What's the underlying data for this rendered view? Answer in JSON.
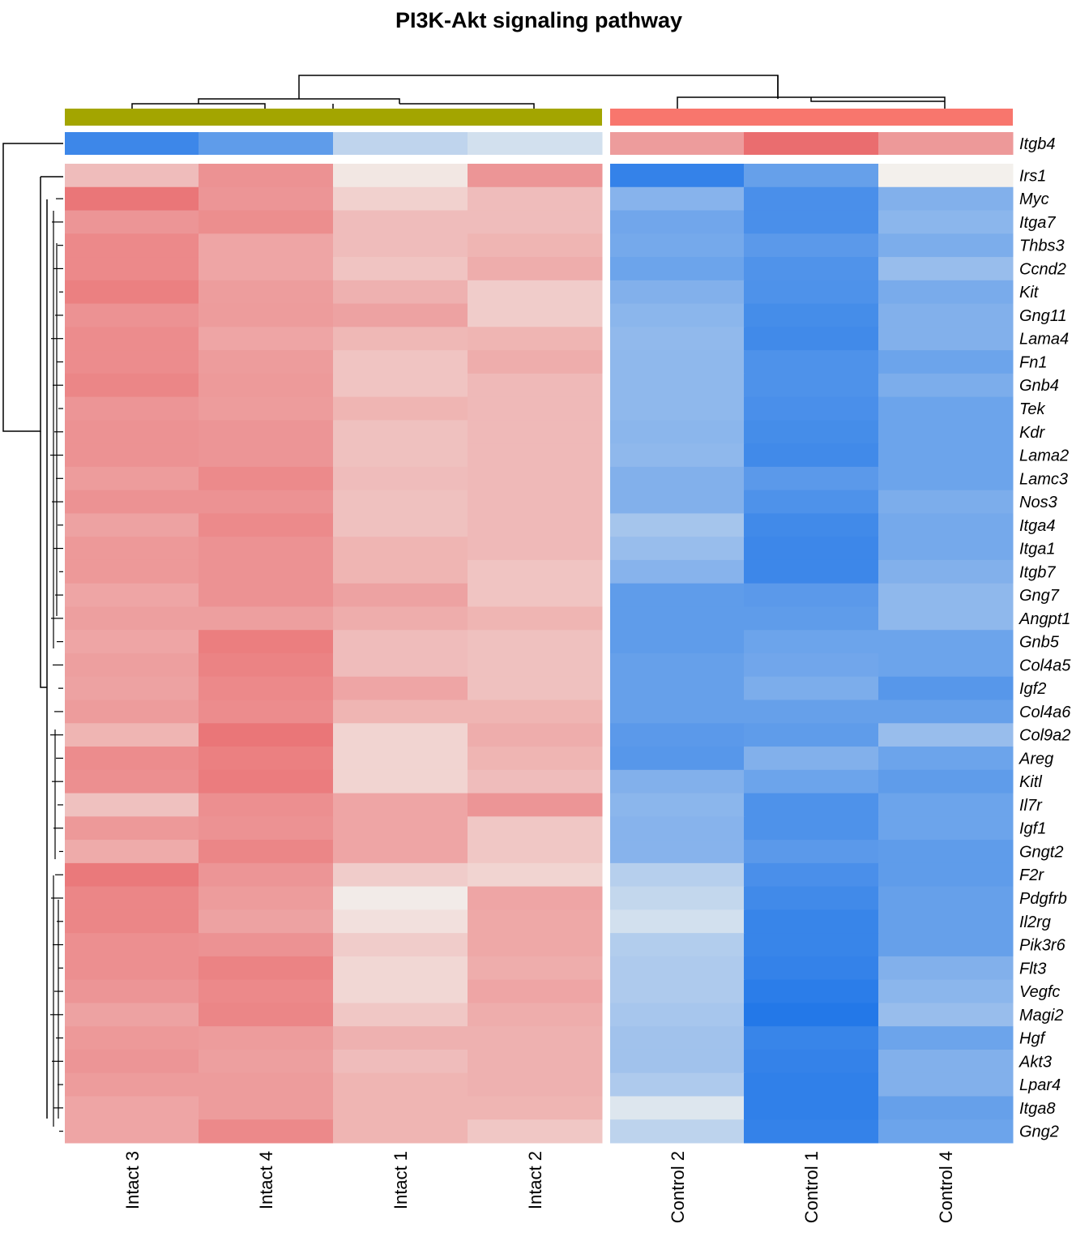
{
  "chart_data": {
    "type": "heatmap",
    "title": "PI3K-Akt signaling pathway",
    "columns": [
      "Intact 3",
      "Intact 4",
      "Intact 1",
      "Intact 2",
      "Control 2",
      "Control 1",
      "Control 4"
    ],
    "column_groups": [
      {
        "members": [
          "Intact 3",
          "Intact 4",
          "Intact 1",
          "Intact 2"
        ],
        "color": "#A3A500"
      },
      {
        "members": [
          "Control 2",
          "Control 1",
          "Control 4"
        ],
        "color": "#F8766D"
      }
    ],
    "annotation_row": {
      "label": "Itgb4",
      "values": [
        -0.84,
        -0.68,
        -0.24,
        -0.15,
        0.56,
        0.86,
        0.58
      ]
    },
    "rows": [
      "Irs1",
      "Myc",
      "Itga7",
      "Thbs3",
      "Ccnd2",
      "Kit",
      "Gng11",
      "Lama4",
      "Fn1",
      "Gnb4",
      "Tek",
      "Kdr",
      "Lama2",
      "Lamc3",
      "Nos3",
      "Itga4",
      "Itga1",
      "Itgb7",
      "Gng7",
      "Angpt1",
      "Gnb5",
      "Col4a5",
      "Igf2",
      "Col4a6",
      "Col9a2",
      "Areg",
      "Kitl",
      "Il7r",
      "Igf1",
      "Gngt2",
      "F2r",
      "Pdgfrb",
      "Il2rg",
      "Pik3r6",
      "Flt3",
      "Vegfc",
      "Magi2",
      "Hgf",
      "Akt3",
      "Lpar4",
      "Itga8",
      "Gng2"
    ],
    "values": [
      [
        0.35,
        0.62,
        0.08,
        0.6,
        -0.88,
        -0.65,
        0.02
      ],
      [
        0.8,
        0.6,
        0.22,
        0.35,
        -0.5,
        -0.78,
        -0.52
      ],
      [
        0.6,
        0.65,
        0.35,
        0.35,
        -0.6,
        -0.78,
        -0.48
      ],
      [
        0.68,
        0.5,
        0.35,
        0.4,
        -0.58,
        -0.7,
        -0.55
      ],
      [
        0.68,
        0.5,
        0.3,
        0.45,
        -0.62,
        -0.75,
        -0.42
      ],
      [
        0.74,
        0.55,
        0.42,
        0.25,
        -0.52,
        -0.76,
        -0.56
      ],
      [
        0.62,
        0.56,
        0.52,
        0.25,
        -0.48,
        -0.8,
        -0.52
      ],
      [
        0.66,
        0.5,
        0.38,
        0.4,
        -0.45,
        -0.82,
        -0.52
      ],
      [
        0.66,
        0.56,
        0.3,
        0.45,
        -0.46,
        -0.76,
        -0.62
      ],
      [
        0.7,
        0.57,
        0.3,
        0.37,
        -0.46,
        -0.76,
        -0.55
      ],
      [
        0.6,
        0.56,
        0.4,
        0.37,
        -0.46,
        -0.78,
        -0.62
      ],
      [
        0.62,
        0.6,
        0.32,
        0.37,
        -0.48,
        -0.8,
        -0.62
      ],
      [
        0.62,
        0.6,
        0.32,
        0.37,
        -0.46,
        -0.82,
        -0.62
      ],
      [
        0.56,
        0.67,
        0.35,
        0.37,
        -0.52,
        -0.7,
        -0.62
      ],
      [
        0.62,
        0.62,
        0.32,
        0.37,
        -0.52,
        -0.76,
        -0.55
      ],
      [
        0.52,
        0.67,
        0.32,
        0.37,
        -0.36,
        -0.82,
        -0.58
      ],
      [
        0.58,
        0.62,
        0.4,
        0.37,
        -0.42,
        -0.84,
        -0.58
      ],
      [
        0.58,
        0.62,
        0.4,
        0.3,
        -0.5,
        -0.84,
        -0.52
      ],
      [
        0.5,
        0.62,
        0.52,
        0.3,
        -0.68,
        -0.7,
        -0.46
      ],
      [
        0.54,
        0.54,
        0.45,
        0.4,
        -0.68,
        -0.68,
        -0.46
      ],
      [
        0.5,
        0.75,
        0.35,
        0.32,
        -0.68,
        -0.62,
        -0.62
      ],
      [
        0.54,
        0.72,
        0.35,
        0.32,
        -0.65,
        -0.6,
        -0.62
      ],
      [
        0.52,
        0.68,
        0.5,
        0.32,
        -0.65,
        -0.55,
        -0.72
      ],
      [
        0.56,
        0.66,
        0.4,
        0.4,
        -0.65,
        -0.65,
        -0.65
      ],
      [
        0.4,
        0.8,
        0.2,
        0.45,
        -0.7,
        -0.68,
        -0.42
      ],
      [
        0.66,
        0.74,
        0.2,
        0.4,
        -0.72,
        -0.52,
        -0.62
      ],
      [
        0.64,
        0.76,
        0.2,
        0.35,
        -0.52,
        -0.62,
        -0.68
      ],
      [
        0.32,
        0.64,
        0.5,
        0.6,
        -0.48,
        -0.76,
        -0.62
      ],
      [
        0.58,
        0.62,
        0.5,
        0.28,
        -0.5,
        -0.76,
        -0.62
      ],
      [
        0.46,
        0.7,
        0.5,
        0.28,
        -0.5,
        -0.7,
        -0.68
      ],
      [
        0.78,
        0.6,
        0.25,
        0.2,
        -0.28,
        -0.78,
        -0.68
      ],
      [
        0.7,
        0.56,
        0.05,
        0.5,
        -0.22,
        -0.82,
        -0.65
      ],
      [
        0.7,
        0.52,
        0.12,
        0.48,
        -0.15,
        -0.86,
        -0.65
      ],
      [
        0.64,
        0.62,
        0.25,
        0.48,
        -0.3,
        -0.86,
        -0.65
      ],
      [
        0.64,
        0.72,
        0.18,
        0.45,
        -0.32,
        -0.88,
        -0.52
      ],
      [
        0.6,
        0.68,
        0.18,
        0.5,
        -0.32,
        -0.92,
        -0.48
      ],
      [
        0.52,
        0.7,
        0.28,
        0.45,
        -0.35,
        -0.96,
        -0.42
      ],
      [
        0.58,
        0.56,
        0.42,
        0.42,
        -0.38,
        -0.86,
        -0.62
      ],
      [
        0.6,
        0.54,
        0.35,
        0.42,
        -0.38,
        -0.88,
        -0.52
      ],
      [
        0.56,
        0.56,
        0.4,
        0.42,
        -0.32,
        -0.9,
        -0.52
      ],
      [
        0.5,
        0.56,
        0.4,
        0.4,
        -0.1,
        -0.9,
        -0.65
      ],
      [
        0.5,
        0.68,
        0.4,
        0.28,
        -0.25,
        -0.88,
        -0.62
      ]
    ],
    "colors": {
      "low": "#1A73E8",
      "mid": "#F3F3EF",
      "high": "#E8575A",
      "title": "#000000"
    },
    "grid": false,
    "legend": "none"
  }
}
